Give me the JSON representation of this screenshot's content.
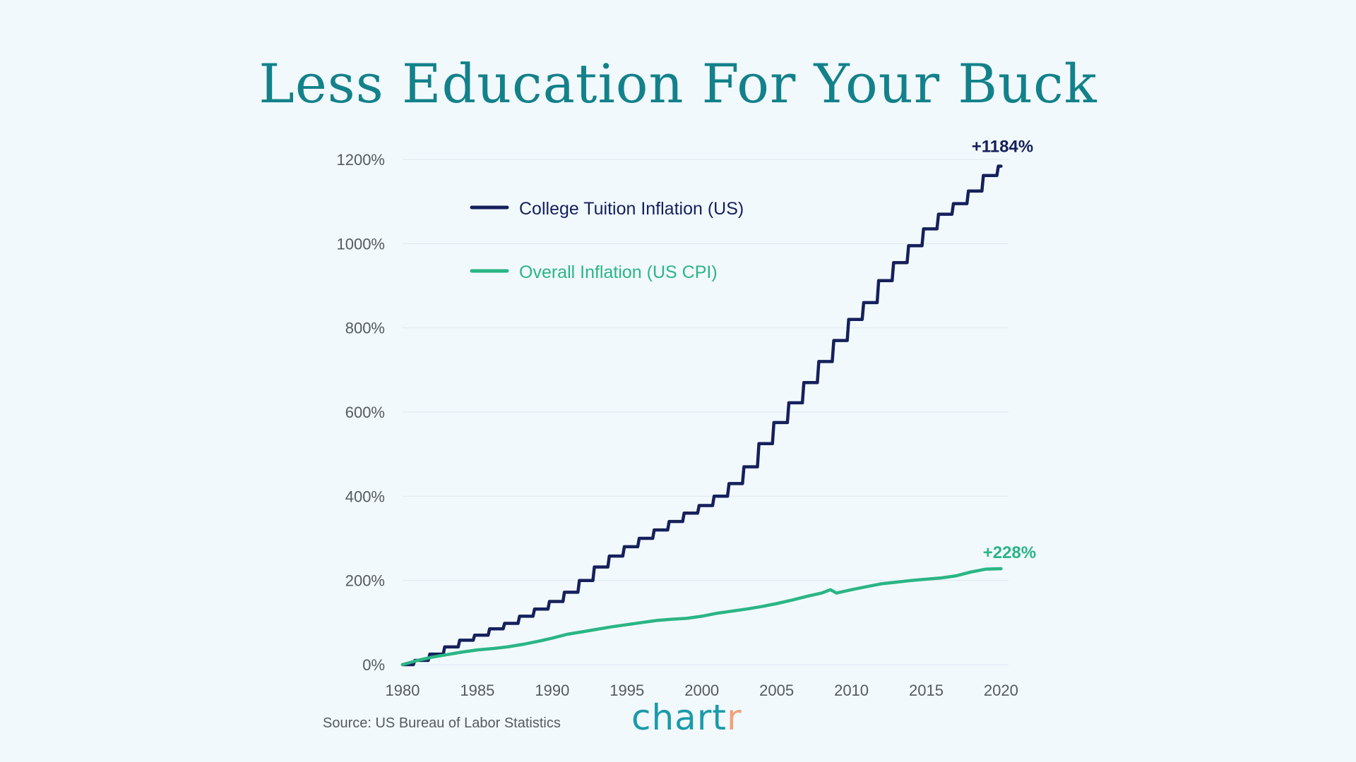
{
  "title": "Less Education For Your Buck",
  "source": "Source: US Bureau of Labor Statistics",
  "brand": {
    "main": "chart",
    "accent_letter": "r",
    "color": "#1b9aaa",
    "accent_color": "#f2a27b"
  },
  "colors": {
    "background": "#f1f9fd",
    "title": "#13818a",
    "tuition": "#15205b",
    "cpi": "#2bb585",
    "grid": "#dde7ee"
  },
  "chart_data": {
    "type": "line",
    "title": "Less Education For Your Buck",
    "xlim": [
      1980,
      2020.5
    ],
    "ylim": [
      0,
      1200
    ],
    "y_ticks": [
      0,
      200,
      400,
      600,
      800,
      1000,
      1200
    ],
    "y_tick_labels": [
      "0%",
      "200%",
      "400%",
      "600%",
      "800%",
      "1000%",
      "1200%"
    ],
    "x_ticks": [
      1980,
      1985,
      1990,
      1995,
      2000,
      2005,
      2010,
      2015,
      2020
    ],
    "x_tick_labels": [
      "1980",
      "1985",
      "1990",
      "1995",
      "2000",
      "2005",
      "2010",
      "2015",
      "2020"
    ],
    "grid": "horizontal",
    "legend_placement": "top-left",
    "series": [
      {
        "name": "College Tuition Inflation (US)",
        "color": "#15205b",
        "end_label": "+1184%",
        "x": [
          1980,
          1981,
          1982,
          1983,
          1984,
          1985,
          1986,
          1987,
          1988,
          1989,
          1990,
          1991,
          1992,
          1993,
          1994,
          1995,
          1996,
          1997,
          1998,
          1999,
          2000,
          2001,
          2002,
          2003,
          2004,
          2005,
          2006,
          2007,
          2008,
          2009,
          2010,
          2011,
          2012,
          2013,
          2014,
          2015,
          2016,
          2017,
          2018,
          2019,
          2020
        ],
        "y": [
          0,
          10,
          25,
          42,
          58,
          70,
          85,
          98,
          115,
          132,
          150,
          172,
          200,
          232,
          258,
          280,
          300,
          320,
          340,
          360,
          378,
          400,
          430,
          470,
          525,
          575,
          622,
          670,
          720,
          770,
          820,
          860,
          912,
          955,
          995,
          1035,
          1070,
          1095,
          1125,
          1162,
          1184
        ]
      },
      {
        "name": "Overall Inflation (US CPI)",
        "color": "#2bb585",
        "end_label": "+228%",
        "x": [
          1980,
          1981,
          1982,
          1983,
          1984,
          1985,
          1986,
          1987,
          1988,
          1989,
          1990,
          1991,
          1992,
          1993,
          1994,
          1995,
          1996,
          1997,
          1998,
          1999,
          2000,
          2001,
          2002,
          2003,
          2004,
          2005,
          2006,
          2007,
          2008,
          2008.6,
          2009,
          2010,
          2011,
          2012,
          2013,
          2014,
          2015,
          2016,
          2017,
          2018,
          2019,
          2020
        ],
        "y": [
          0,
          10,
          18,
          24,
          30,
          35,
          38,
          42,
          48,
          55,
          63,
          72,
          78,
          84,
          90,
          95,
          100,
          105,
          108,
          110,
          115,
          122,
          127,
          132,
          138,
          145,
          153,
          162,
          170,
          178,
          170,
          178,
          185,
          192,
          196,
          200,
          203,
          206,
          211,
          220,
          227,
          228
        ]
      }
    ]
  }
}
